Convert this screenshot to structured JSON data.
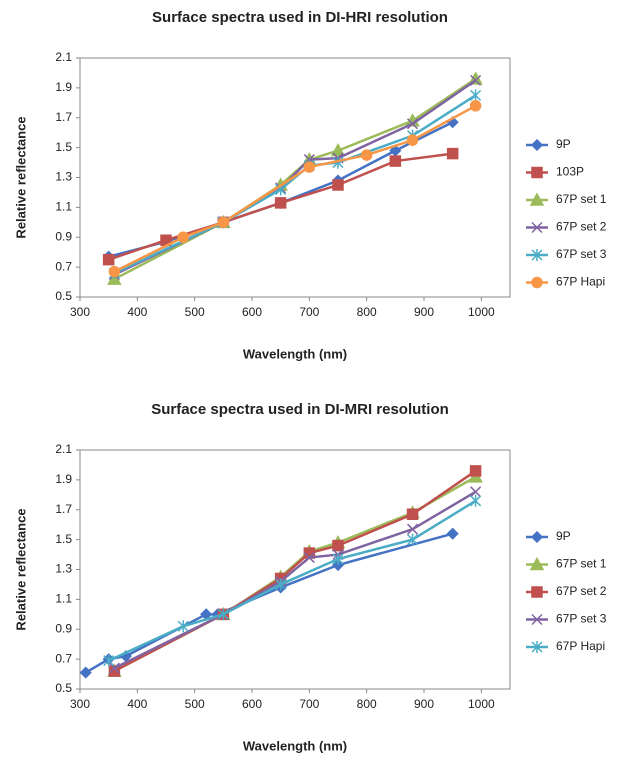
{
  "chart_data": [
    {
      "type": "line",
      "title": "Surface spectra used in DI-HRI resolution",
      "x_label": "Wavelength (nm)",
      "y_label": "Relative reflectance",
      "xlim": [
        300,
        1050
      ],
      "xticks": [
        300,
        400,
        500,
        600,
        700,
        800,
        900,
        1000
      ],
      "ylim": [
        0.5,
        2.1
      ],
      "yticks": [
        0.5,
        0.7,
        0.9,
        1.1,
        1.3,
        1.5,
        1.7,
        1.9,
        2.1
      ],
      "series": [
        {
          "name": "9P",
          "color": "#4472c4",
          "marker": "diamond",
          "x": [
            350,
            450,
            550,
            650,
            750,
            850,
            950
          ],
          "values": [
            0.77,
            0.87,
            1.0,
            1.13,
            1.28,
            1.48,
            1.67
          ]
        },
        {
          "name": "103P",
          "color": "#c0504d",
          "marker": "square",
          "x": [
            350,
            450,
            550,
            650,
            750,
            850,
            950
          ],
          "values": [
            0.75,
            0.88,
            1.0,
            1.13,
            1.25,
            1.41,
            1.46
          ]
        },
        {
          "name": "67P set 1",
          "color": "#9bbb59",
          "marker": "triangle",
          "x": [
            360,
            550,
            650,
            700,
            750,
            880,
            990
          ],
          "values": [
            0.62,
            1.0,
            1.25,
            1.42,
            1.48,
            1.68,
            1.96
          ]
        },
        {
          "name": "67P set 2",
          "color": "#8064a2",
          "marker": "cross",
          "x": [
            360,
            550,
            650,
            700,
            750,
            880,
            990
          ],
          "values": [
            0.65,
            1.0,
            1.23,
            1.42,
            1.43,
            1.66,
            1.95
          ]
        },
        {
          "name": "67P set 3",
          "color": "#4bacc6",
          "marker": "star",
          "x": [
            360,
            550,
            650,
            700,
            750,
            880,
            990
          ],
          "values": [
            0.66,
            1.0,
            1.22,
            1.38,
            1.4,
            1.58,
            1.85
          ]
        },
        {
          "name": "67P Hapi",
          "color": "#f79646",
          "marker": "circle",
          "x": [
            360,
            480,
            550,
            700,
            800,
            880,
            990
          ],
          "values": [
            0.67,
            0.9,
            1.0,
            1.37,
            1.45,
            1.55,
            1.78
          ]
        }
      ]
    },
    {
      "type": "line",
      "title": "Surface spectra used in DI-MRI resolution",
      "x_label": "Wavelength (nm)",
      "y_label": "Relative reflectance",
      "xlim": [
        300,
        1050
      ],
      "xticks": [
        300,
        400,
        500,
        600,
        700,
        800,
        900,
        1000
      ],
      "ylim": [
        0.5,
        2.1
      ],
      "yticks": [
        0.5,
        0.7,
        0.9,
        1.1,
        1.3,
        1.5,
        1.7,
        1.9,
        2.1
      ],
      "series": [
        {
          "name": "9P",
          "color": "#4472c4",
          "marker": "diamond",
          "x": [
            310,
            350,
            380,
            520,
            540,
            650,
            750,
            950
          ],
          "values": [
            0.61,
            0.7,
            0.72,
            1.0,
            1.0,
            1.18,
            1.33,
            1.54
          ]
        },
        {
          "name": "67P set 1",
          "color": "#9bbb59",
          "marker": "triangle",
          "x": [
            360,
            550,
            650,
            700,
            750,
            880,
            990
          ],
          "values": [
            0.62,
            1.0,
            1.25,
            1.42,
            1.48,
            1.68,
            1.92
          ]
        },
        {
          "name": "67P set 2",
          "color": "#c0504d",
          "marker": "square",
          "x": [
            360,
            550,
            650,
            700,
            750,
            880,
            990
          ],
          "values": [
            0.62,
            1.0,
            1.24,
            1.41,
            1.46,
            1.67,
            1.96
          ]
        },
        {
          "name": "67P set 3",
          "color": "#8064a2",
          "marker": "cross",
          "x": [
            360,
            550,
            650,
            700,
            750,
            880,
            990
          ],
          "values": [
            0.64,
            1.0,
            1.22,
            1.38,
            1.4,
            1.57,
            1.82
          ]
        },
        {
          "name": "67P Hapi",
          "color": "#4bacc6",
          "marker": "star",
          "x": [
            350,
            480,
            550,
            650,
            750,
            880,
            990
          ],
          "values": [
            0.69,
            0.92,
            1.0,
            1.2,
            1.37,
            1.5,
            1.76
          ]
        }
      ]
    }
  ]
}
